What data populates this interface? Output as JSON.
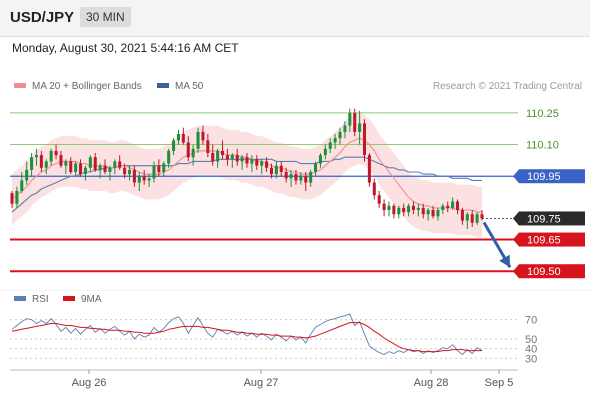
{
  "header": {
    "symbol": "USD/JPY",
    "timeframe": "30 MIN"
  },
  "datetime": "Monday, August 30, 2021 5:44:16 AM CET",
  "legend": {
    "ma20_bb": "MA 20 + Bollinger Bands",
    "ma50": "MA 50",
    "credit": "Research © 2021 Trading Central",
    "rsi": "RSI",
    "rsi_ma": "9MA"
  },
  "colors": {
    "up": "#1e8f3a",
    "down": "#c0182b",
    "bollinger": "#f7c8c8",
    "ma20": "#ef8e8e",
    "ma50": "#5b7fb0",
    "resistance": "#8fcb6e",
    "pivot": "#3a63c8",
    "support": "#d6141d",
    "price_tag": "#2b2b2b",
    "arrow": "#2e5fa7"
  },
  "chart_data": [
    {
      "type": "candlestick",
      "title": "USD/JPY 30 MIN",
      "x_ticks": [
        "Aug 26",
        "Aug 27",
        "Aug 28",
        "Sep 5"
      ],
      "ylim": [
        109.43,
        110.33
      ],
      "grid": false,
      "legend_position": "top-left",
      "candles_ohlc": [
        [
          109.87,
          109.88,
          109.8,
          109.82
        ],
        [
          109.82,
          109.9,
          109.8,
          109.88
        ],
        [
          109.88,
          109.97,
          109.87,
          109.93
        ],
        [
          109.93,
          110.02,
          109.91,
          109.98
        ],
        [
          109.98,
          110.06,
          109.95,
          110.04
        ],
        [
          110.04,
          110.08,
          110.0,
          110.05
        ],
        [
          110.05,
          110.07,
          109.97,
          109.99
        ],
        [
          109.99,
          110.03,
          109.96,
          110.02
        ],
        [
          110.02,
          110.08,
          110.0,
          110.07
        ],
        [
          110.07,
          110.1,
          110.03,
          110.05
        ],
        [
          110.05,
          110.07,
          109.99,
          110.0
        ],
        [
          110.0,
          110.03,
          109.96,
          110.02
        ],
        [
          110.02,
          110.04,
          109.96,
          109.97
        ],
        [
          109.97,
          110.02,
          109.95,
          110.01
        ],
        [
          110.01,
          110.03,
          109.95,
          109.96
        ],
        [
          109.96,
          110.0,
          109.93,
          109.99
        ],
        [
          109.99,
          110.05,
          109.97,
          110.04
        ],
        [
          110.04,
          110.06,
          109.97,
          109.98
        ],
        [
          109.98,
          110.01,
          109.94,
          110.0
        ],
        [
          110.0,
          110.03,
          109.96,
          109.97
        ],
        [
          109.97,
          110.0,
          109.93,
          109.99
        ],
        [
          109.99,
          110.03,
          109.96,
          110.02
        ],
        [
          110.02,
          110.05,
          109.98,
          109.99
        ],
        [
          109.99,
          110.01,
          109.94,
          109.96
        ],
        [
          109.96,
          110.0,
          109.93,
          109.98
        ],
        [
          109.98,
          110.0,
          109.9,
          109.92
        ],
        [
          109.92,
          109.97,
          109.88,
          109.95
        ],
        [
          109.95,
          109.98,
          109.91,
          109.93
        ],
        [
          109.93,
          109.96,
          109.9,
          109.94
        ],
        [
          109.94,
          110.02,
          109.92,
          110.0
        ],
        [
          110.0,
          110.03,
          109.95,
          109.97
        ],
        [
          109.97,
          110.02,
          109.95,
          110.01
        ],
        [
          110.01,
          110.08,
          109.99,
          110.07
        ],
        [
          110.07,
          110.13,
          110.05,
          110.12
        ],
        [
          110.12,
          110.17,
          110.1,
          110.15
        ],
        [
          110.15,
          110.18,
          110.1,
          110.11
        ],
        [
          110.11,
          110.14,
          110.02,
          110.04
        ],
        [
          110.04,
          110.1,
          110.0,
          110.08
        ],
        [
          110.08,
          110.18,
          110.06,
          110.16
        ],
        [
          110.16,
          110.19,
          110.1,
          110.12
        ],
        [
          110.12,
          110.15,
          110.04,
          110.06
        ],
        [
          110.06,
          110.1,
          110.0,
          110.02
        ],
        [
          110.02,
          110.08,
          109.99,
          110.07
        ],
        [
          110.07,
          110.12,
          110.03,
          110.05
        ],
        [
          110.05,
          110.08,
          110.0,
          110.03
        ],
        [
          110.03,
          110.06,
          109.99,
          110.05
        ],
        [
          110.05,
          110.08,
          110.0,
          110.02
        ],
        [
          110.02,
          110.05,
          109.98,
          110.04
        ],
        [
          110.04,
          110.06,
          109.99,
          110.01
        ],
        [
          110.01,
          110.05,
          109.97,
          110.03
        ],
        [
          110.03,
          110.05,
          109.98,
          110.0
        ],
        [
          110.0,
          110.03,
          109.96,
          110.02
        ],
        [
          110.02,
          110.04,
          109.97,
          109.99
        ],
        [
          109.99,
          110.01,
          109.94,
          109.96
        ],
        [
          109.96,
          110.02,
          109.94,
          110.0
        ],
        [
          110.0,
          110.02,
          109.95,
          109.97
        ],
        [
          109.97,
          109.99,
          109.92,
          109.94
        ],
        [
          109.94,
          109.98,
          109.9,
          109.96
        ],
        [
          109.96,
          109.98,
          109.91,
          109.93
        ],
        [
          109.93,
          109.97,
          109.91,
          109.95
        ],
        [
          109.95,
          109.97,
          109.88,
          109.92
        ],
        [
          109.92,
          109.98,
          109.9,
          109.97
        ],
        [
          109.97,
          110.02,
          109.95,
          110.01
        ],
        [
          110.01,
          110.06,
          109.99,
          110.05
        ],
        [
          110.05,
          110.1,
          110.03,
          110.08
        ],
        [
          110.08,
          110.13,
          110.06,
          110.11
        ],
        [
          110.11,
          110.15,
          110.08,
          110.13
        ],
        [
          110.13,
          110.18,
          110.1,
          110.16
        ],
        [
          110.16,
          110.21,
          110.13,
          110.19
        ],
        [
          110.19,
          110.27,
          110.16,
          110.25
        ],
        [
          110.25,
          110.27,
          110.14,
          110.16
        ],
        [
          110.16,
          110.26,
          110.1,
          110.2
        ],
        [
          110.2,
          110.22,
          110.02,
          110.05
        ],
        [
          110.05,
          110.06,
          109.9,
          109.92
        ],
        [
          109.92,
          109.94,
          109.84,
          109.86
        ],
        [
          109.86,
          109.88,
          109.8,
          109.82
        ],
        [
          109.82,
          109.84,
          109.76,
          109.79
        ],
        [
          109.79,
          109.83,
          109.76,
          109.81
        ],
        [
          109.81,
          109.82,
          109.75,
          109.77
        ],
        [
          109.77,
          109.81,
          109.75,
          109.8
        ],
        [
          109.8,
          109.82,
          109.76,
          109.78
        ],
        [
          109.78,
          109.82,
          109.76,
          109.81
        ],
        [
          109.81,
          109.83,
          109.77,
          109.79
        ],
        [
          109.79,
          109.82,
          109.76,
          109.8
        ],
        [
          109.8,
          109.82,
          109.75,
          109.77
        ],
        [
          109.77,
          109.8,
          109.74,
          109.79
        ],
        [
          109.79,
          109.81,
          109.75,
          109.76
        ],
        [
          109.76,
          109.8,
          109.74,
          109.79
        ],
        [
          109.79,
          109.82,
          109.77,
          109.81
        ],
        [
          109.81,
          109.83,
          109.78,
          109.8
        ],
        [
          109.8,
          109.85,
          109.79,
          109.83
        ],
        [
          109.83,
          109.84,
          109.77,
          109.79
        ],
        [
          109.79,
          109.8,
          109.72,
          109.74
        ],
        [
          109.74,
          109.78,
          109.7,
          109.77
        ],
        [
          109.77,
          109.79,
          109.71,
          109.73
        ],
        [
          109.73,
          109.78,
          109.72,
          109.77
        ],
        [
          109.77,
          109.79,
          109.74,
          109.75
        ]
      ],
      "moving_averages": {
        "ma20": [
          109.84,
          109.86,
          109.88,
          109.9,
          109.93,
          109.95,
          109.97,
          109.98,
          110.0,
          110.01,
          110.02,
          110.02,
          110.02,
          110.02,
          110.01,
          110.01,
          110.0,
          110.0,
          110.0,
          110.0,
          109.99,
          109.99,
          110.0,
          110.0,
          109.99,
          109.98,
          109.97,
          109.96,
          109.96,
          109.96,
          109.96,
          109.97,
          109.98,
          110.0,
          110.02,
          110.04,
          110.05,
          110.06,
          110.07,
          110.07,
          110.07,
          110.07,
          110.07,
          110.06,
          110.05,
          110.05,
          110.05,
          110.04,
          110.04,
          110.03,
          110.02,
          110.02,
          110.01,
          110.0,
          109.99,
          109.99,
          109.98,
          109.97,
          109.97,
          109.96,
          109.96,
          109.96,
          109.97,
          109.98,
          110.0,
          110.02,
          110.04,
          110.06,
          110.09,
          110.11,
          110.12,
          110.13,
          110.12,
          110.1,
          110.07,
          110.03,
          110.0,
          109.97,
          109.94,
          109.91,
          109.88,
          109.85,
          109.83,
          109.82,
          109.81,
          109.81,
          109.8,
          109.8,
          109.8,
          109.8,
          109.8,
          109.79,
          109.79,
          109.79,
          109.79,
          109.78,
          109.78
        ],
        "ma50": [
          109.78,
          109.8,
          109.82,
          109.84,
          109.86,
          109.87,
          109.89,
          109.9,
          109.91,
          109.92,
          109.93,
          109.94,
          109.95,
          109.95,
          109.96,
          109.97,
          109.97,
          109.98,
          109.98,
          109.99,
          109.99,
          109.99,
          110.0,
          110.0,
          110.0,
          110.0,
          110.0,
          110.0,
          110.0,
          110.0,
          110.0,
          110.0,
          110.0,
          110.0,
          110.01,
          110.01,
          110.01,
          110.02,
          110.02,
          110.02,
          110.02,
          110.02,
          110.03,
          110.03,
          110.03,
          110.03,
          110.03,
          110.03,
          110.03,
          110.03,
          110.03,
          110.03,
          110.03,
          110.03,
          110.02,
          110.02,
          110.02,
          110.02,
          110.02,
          110.01,
          110.01,
          110.01,
          110.01,
          110.02,
          110.02,
          110.02,
          110.03,
          110.03,
          110.04,
          110.04,
          110.04,
          110.04,
          110.04,
          110.03,
          110.02,
          110.01,
          110.0,
          109.99,
          109.99,
          109.98,
          109.98,
          109.97,
          109.97,
          109.97,
          109.96,
          109.96,
          109.96,
          109.95,
          109.95,
          109.95,
          109.94,
          109.94,
          109.94,
          109.94,
          109.93,
          109.93,
          109.93
        ],
        "bollinger_half_width": 0.12
      },
      "levels": [
        {
          "label": "110.25",
          "value": 110.25,
          "kind": "resistance"
        },
        {
          "label": "110.10",
          "value": 110.1,
          "kind": "resistance"
        },
        {
          "label": "109.95",
          "value": 109.95,
          "kind": "pivot"
        },
        {
          "label": "109.75",
          "value": 109.75,
          "kind": "last_price"
        },
        {
          "label": "109.65",
          "value": 109.65,
          "kind": "support"
        },
        {
          "label": "109.50",
          "value": 109.5,
          "kind": "support"
        }
      ],
      "projection": {
        "from": 109.75,
        "to": 109.5
      }
    },
    {
      "type": "line",
      "title": "RSI",
      "ylim": [
        20,
        80
      ],
      "y_ticks": [
        70,
        50,
        40,
        30
      ],
      "series": [
        {
          "name": "RSI",
          "values": [
            60,
            64,
            68,
            71,
            70,
            66,
            69,
            66,
            71,
            65,
            58,
            62,
            56,
            61,
            55,
            60,
            64,
            57,
            61,
            56,
            60,
            63,
            58,
            54,
            58,
            50,
            55,
            52,
            54,
            62,
            57,
            61,
            67,
            71,
            73,
            66,
            56,
            64,
            72,
            64,
            56,
            52,
            60,
            58,
            55,
            58,
            54,
            57,
            53,
            56,
            52,
            56,
            53,
            49,
            55,
            52,
            48,
            53,
            49,
            52,
            46,
            55,
            62,
            65,
            68,
            70,
            71,
            73,
            74,
            76,
            64,
            68,
            55,
            43,
            39,
            36,
            34,
            37,
            35,
            38,
            36,
            39,
            37,
            38,
            35,
            38,
            36,
            38,
            41,
            40,
            44,
            38,
            34,
            39,
            35,
            41,
            38
          ]
        },
        {
          "name": "9MA",
          "values": [
            58,
            59,
            60,
            61,
            62,
            63,
            64,
            65,
            66,
            66,
            65,
            64,
            64,
            63,
            62,
            62,
            61,
            61,
            60,
            60,
            59,
            59,
            59,
            58,
            58,
            57,
            57,
            56,
            56,
            56,
            57,
            58,
            60,
            61,
            62,
            63,
            63,
            63,
            63,
            62,
            62,
            61,
            60,
            59,
            59,
            58,
            57,
            57,
            56,
            56,
            55,
            55,
            55,
            54,
            54,
            53,
            53,
            53,
            52,
            52,
            51,
            52,
            53,
            55,
            57,
            59,
            61,
            63,
            65,
            67,
            67,
            67,
            65,
            62,
            58,
            55,
            51,
            48,
            45,
            42,
            40,
            39,
            38,
            38,
            37,
            37,
            37,
            37,
            38,
            38,
            39,
            39,
            39,
            38,
            38,
            38,
            38
          ]
        }
      ]
    }
  ]
}
